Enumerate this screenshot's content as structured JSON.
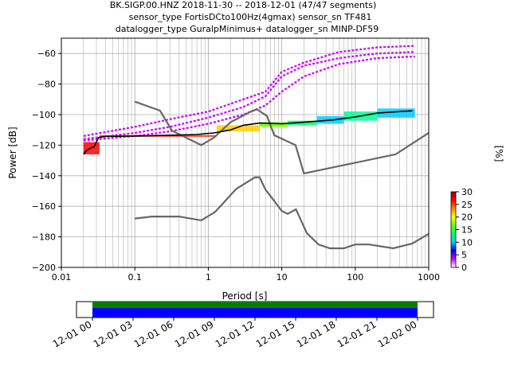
{
  "title_lines": [
    "BK.SIGP.00.HNZ   2018-11-30 -- 2018-12-01  (47/47 segments)",
    "sensor_type FortisDCto100Hz(4gmax) sensor_sn TF481",
    "datalogger_type GuralpMinimus+ datalogger_sn MINP-DF59"
  ],
  "chart_data": {
    "type": "heatmap",
    "xlabel": "Period [s]",
    "ylabel": "Power [dB]",
    "x_scale": "log",
    "xlim": [
      0.01,
      1000
    ],
    "ylim": [
      -200,
      -50
    ],
    "x_ticks": [
      0.01,
      0.1,
      1,
      10,
      100,
      1000
    ],
    "x_tick_labels": [
      "0.01",
      "0.1",
      "1",
      "10",
      "100",
      "1000"
    ],
    "y_ticks": [
      -200,
      -180,
      -160,
      -140,
      -120,
      -100,
      -80,
      -60
    ],
    "grid": true,
    "colorbar": {
      "label": "[%]",
      "ticks": [
        0,
        5,
        10,
        15,
        20,
        25,
        30
      ],
      "range": [
        0,
        30
      ],
      "colormap": [
        "#ffffff",
        "#cc00ff",
        "#0000ff",
        "#00ccff",
        "#00ff66",
        "#66ff00",
        "#ffff00",
        "#ff8800",
        "#ff0000",
        "#990000"
      ]
    },
    "nlnm": [
      [
        0.1,
        -168
      ],
      [
        0.17,
        -166.7
      ],
      [
        0.4,
        -166.7
      ],
      [
        0.8,
        -169.2
      ],
      [
        1.24,
        -163.7
      ],
      [
        2.4,
        -148.6
      ],
      [
        4.3,
        -141.1
      ],
      [
        5.0,
        -141.1
      ],
      [
        6.0,
        -149
      ],
      [
        10,
        -163
      ],
      [
        12,
        -165
      ],
      [
        15.6,
        -162
      ],
      [
        21.9,
        -177.5
      ],
      [
        31.6,
        -185
      ],
      [
        45,
        -187.5
      ],
      [
        70,
        -187.5
      ],
      [
        100,
        -185
      ],
      [
        154.5,
        -185
      ],
      [
        328.7,
        -187.5
      ],
      [
        600,
        -184.4
      ],
      [
        1000,
        -178
      ]
    ],
    "nhnm": [
      [
        0.1,
        -91.5
      ],
      [
        0.22,
        -97.4
      ],
      [
        0.32,
        -110.5
      ],
      [
        0.8,
        -120
      ],
      [
        1.2,
        -115
      ],
      [
        2.0,
        -105
      ],
      [
        3.8,
        -98
      ],
      [
        4.6,
        -96.5
      ],
      [
        6.3,
        -101
      ],
      [
        7.9,
        -113.5
      ],
      [
        15.4,
        -120
      ],
      [
        20,
        -138.5
      ],
      [
        354.8,
        -126
      ],
      [
        1000,
        -112
      ]
    ],
    "mode_curve": [
      [
        0.02,
        -126
      ],
      [
        0.022,
        -123.5
      ],
      [
        0.025,
        -122
      ],
      [
        0.028,
        -121
      ],
      [
        0.032,
        -115
      ],
      [
        0.04,
        -114.3
      ],
      [
        0.1,
        -114
      ],
      [
        0.3,
        -113.5
      ],
      [
        0.7,
        -113
      ],
      [
        1.2,
        -112
      ],
      [
        2,
        -110
      ],
      [
        3,
        -107
      ],
      [
        5,
        -105.5
      ],
      [
        10,
        -106
      ],
      [
        20,
        -105
      ],
      [
        50,
        -103.5
      ],
      [
        100,
        -101.5
      ],
      [
        200,
        -99
      ],
      [
        400,
        -98
      ],
      [
        600,
        -97.5
      ]
    ],
    "pdf_bands": [
      {
        "x0": 0.02,
        "x1": 0.033,
        "y_top": -126,
        "y_bot": -118,
        "color": "#ff0000"
      },
      {
        "x0": 0.033,
        "x1": 1.3,
        "y_top": -114.5,
        "y_bot": -113.5,
        "color": "#ff2200"
      },
      {
        "x0": 1.3,
        "x1": 5,
        "y_top": -111,
        "y_bot": -107,
        "color": "#ffcc00"
      },
      {
        "x0": 5,
        "x1": 12,
        "y_top": -108,
        "y_bot": -105,
        "color": "#66ff00"
      },
      {
        "x0": 12,
        "x1": 30,
        "y_top": -107,
        "y_bot": -104,
        "color": "#00ff66"
      },
      {
        "x0": 30,
        "x1": 70,
        "y_top": -106,
        "y_bot": -101,
        "color": "#00ccff"
      },
      {
        "x0": 70,
        "x1": 200,
        "y_top": -104,
        "y_bot": -98,
        "color": "#00ff99"
      },
      {
        "x0": 200,
        "x1": 650,
        "y_top": -102,
        "y_bot": -96,
        "color": "#00ccff"
      }
    ],
    "pdf_spread_lines": [
      {
        "pts": [
          [
            0.02,
            -116
          ],
          [
            0.1,
            -112
          ],
          [
            0.3,
            -108
          ],
          [
            1,
            -102
          ],
          [
            3,
            -95
          ],
          [
            6,
            -88
          ],
          [
            10,
            -75
          ],
          [
            20,
            -68
          ],
          [
            60,
            -63
          ],
          [
            200,
            -60
          ],
          [
            650,
            -59
          ]
        ]
      },
      {
        "pts": [
          [
            0.02,
            -114
          ],
          [
            0.1,
            -108
          ],
          [
            0.3,
            -103
          ],
          [
            1,
            -98
          ],
          [
            3,
            -90
          ],
          [
            6,
            -85
          ],
          [
            10,
            -72
          ],
          [
            20,
            -66
          ],
          [
            60,
            -59
          ],
          [
            200,
            -56
          ],
          [
            650,
            -55
          ]
        ]
      },
      {
        "pts": [
          [
            0.02,
            -117
          ],
          [
            0.1,
            -114
          ],
          [
            0.3,
            -111
          ],
          [
            1,
            -106
          ],
          [
            3,
            -100
          ],
          [
            6,
            -94
          ],
          [
            10,
            -85
          ],
          [
            20,
            -75
          ],
          [
            60,
            -67
          ],
          [
            200,
            -63
          ],
          [
            650,
            -62
          ]
        ]
      }
    ],
    "timeline": {
      "ticks": [
        "12-01 00",
        "12-01 03",
        "12-01 06",
        "12-01 09",
        "12-01 12",
        "12-01 15",
        "12-01 18",
        "12-01 21",
        "12-02 00"
      ],
      "bands": [
        {
          "color": "#008000"
        },
        {
          "color": "#0000ff"
        }
      ]
    }
  }
}
